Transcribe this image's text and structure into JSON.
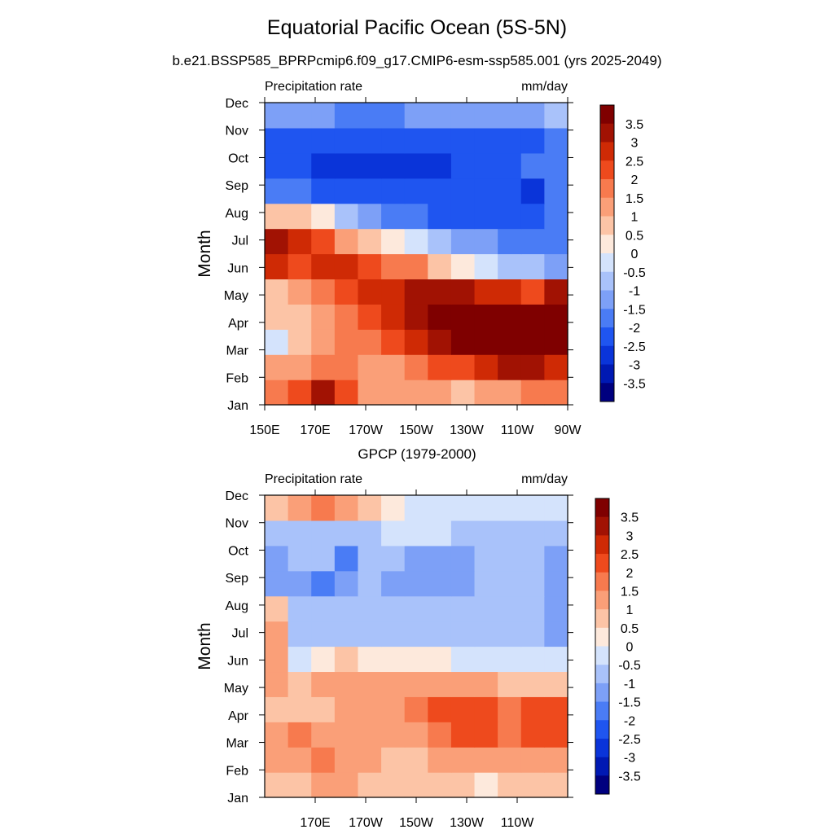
{
  "figure": {
    "title": "Equatorial Pacific Ocean (5S-5N)",
    "subtitle": "b.e21.BSSP585_BPRPcmip6.f09_g17.CMIP6-esm-ssp585.001 (yrs 2025-2049)"
  },
  "chart_data": [
    {
      "type": "heatmap",
      "title": "",
      "left_label": "Precipitation rate",
      "right_label": "mm/day",
      "ylabel": "Month",
      "xlabel": "",
      "y_ticks": [
        "Jan",
        "Feb",
        "Mar",
        "Apr",
        "May",
        "Jun",
        "Jul",
        "Aug",
        "Sep",
        "Oct",
        "Nov",
        "Dec"
      ],
      "x_ticks": [
        "150E",
        "170E",
        "170W",
        "150W",
        "130W",
        "110W",
        "90W"
      ],
      "x_tick_values_deg_east": [
        150,
        170,
        190,
        210,
        230,
        250,
        270
      ],
      "xlim_deg_east": [
        150,
        270
      ],
      "levels": [
        -3.5,
        -3,
        -2.5,
        -2,
        -1.5,
        -1,
        -0.5,
        0,
        0.5,
        1,
        1.5,
        2,
        2.5,
        3,
        3.5
      ],
      "colorbar_labels": [
        "3.5",
        "3",
        "2.5",
        "2",
        "1.5",
        "1",
        "0.5",
        "0",
        "-0.5",
        "-1",
        "-1.5",
        "-2",
        "-2.5",
        "-3",
        "-3.5"
      ],
      "colors": [
        "#00007f",
        "#0019b3",
        "#0a34d9",
        "#1f55f0",
        "#4a7cf5",
        "#7da0f7",
        "#a9c2fa",
        "#d4e3fc",
        "#fde9dc",
        "#fcc4a6",
        "#fa9f78",
        "#f77a4e",
        "#ee4a1d",
        "#cf2a05",
        "#a11203",
        "#7f0000"
      ],
      "anomaly_mm_per_day": {
        "rows_jan_to_dec": [
          [
            1.5,
            2.0,
            3.0,
            2.0,
            1.0,
            1.0,
            1.0,
            1.0,
            0.5,
            1.0,
            1.0,
            1.5,
            1.5
          ],
          [
            1.0,
            1.0,
            1.5,
            1.5,
            1.0,
            1.0,
            1.5,
            2.0,
            2.0,
            2.5,
            3.0,
            3.0,
            2.5
          ],
          [
            -0.5,
            0.5,
            1.0,
            1.5,
            1.5,
            2.0,
            2.5,
            3.0,
            3.5,
            3.5,
            4.0,
            4.0,
            4.0
          ],
          [
            0.5,
            0.5,
            1.0,
            1.5,
            2.0,
            2.5,
            3.0,
            4.0,
            4.0,
            4.0,
            4.0,
            4.0,
            4.0
          ],
          [
            0.5,
            1.0,
            1.5,
            2.0,
            2.5,
            2.5,
            3.0,
            3.0,
            3.0,
            2.5,
            2.5,
            2.0,
            3.0
          ],
          [
            2.5,
            2.0,
            2.5,
            2.5,
            2.0,
            1.5,
            1.5,
            0.5,
            0.0,
            -0.5,
            -1.0,
            -1.0,
            -1.5
          ],
          [
            3.0,
            2.5,
            2.0,
            1.0,
            0.5,
            0.0,
            -0.5,
            -1.0,
            -1.5,
            -1.5,
            -2.0,
            -2.0,
            -2.0
          ],
          [
            0.5,
            0.5,
            0.0,
            -1.0,
            -1.5,
            -2.0,
            -2.0,
            -2.5,
            -2.5,
            -2.5,
            -2.5,
            -2.5,
            -2.0
          ],
          [
            -2.0,
            -2.0,
            -2.5,
            -2.5,
            -2.5,
            -2.5,
            -2.5,
            -2.5,
            -2.5,
            -2.5,
            -2.5,
            -3.0,
            -2.0
          ],
          [
            -2.5,
            -2.5,
            -3.0,
            -3.0,
            -3.0,
            -3.0,
            -3.0,
            -3.0,
            -2.5,
            -2.5,
            -2.5,
            -2.0,
            -2.0
          ],
          [
            -2.5,
            -2.5,
            -2.5,
            -2.5,
            -2.5,
            -2.5,
            -2.5,
            -2.5,
            -2.5,
            -2.5,
            -2.5,
            -2.5,
            -2.0
          ],
          [
            -1.5,
            -1.5,
            -1.5,
            -2.0,
            -2.0,
            -2.0,
            -1.5,
            -1.5,
            -1.5,
            -1.5,
            -1.5,
            -1.5,
            -1.0
          ]
        ]
      }
    },
    {
      "type": "heatmap",
      "title": "GPCP (1979-2000)",
      "left_label": "Precipitation rate",
      "right_label": "mm/day",
      "ylabel": "Month",
      "xlabel": "",
      "y_ticks": [
        "Jan",
        "Feb",
        "Mar",
        "Apr",
        "May",
        "Jun",
        "Jul",
        "Aug",
        "Sep",
        "Oct",
        "Nov",
        "Dec"
      ],
      "x_ticks": [
        "170E",
        "170W",
        "150W",
        "130W",
        "110W"
      ],
      "x_tick_values_deg_east": [
        170,
        190,
        210,
        230,
        250
      ],
      "xlim_deg_east": [
        150,
        270
      ],
      "levels": [
        -3.5,
        -3,
        -2.5,
        -2,
        -1.5,
        -1,
        -0.5,
        0,
        0.5,
        1,
        1.5,
        2,
        2.5,
        3,
        3.5
      ],
      "colorbar_labels": [
        "3.5",
        "3",
        "2.5",
        "2",
        "1.5",
        "1",
        "0.5",
        "0",
        "-0.5",
        "-1",
        "-1.5",
        "-2",
        "-2.5",
        "-3",
        "-3.5"
      ],
      "colors": [
        "#00007f",
        "#0019b3",
        "#0a34d9",
        "#1f55f0",
        "#4a7cf5",
        "#7da0f7",
        "#a9c2fa",
        "#d4e3fc",
        "#fde9dc",
        "#fcc4a6",
        "#fa9f78",
        "#f77a4e",
        "#ee4a1d",
        "#cf2a05",
        "#a11203",
        "#7f0000"
      ],
      "anomaly_mm_per_day": {
        "rows_jan_to_dec": [
          [
            0.5,
            0.5,
            1.0,
            1.0,
            0.5,
            0.5,
            0.5,
            0.5,
            0.5,
            0.0,
            0.5,
            0.5,
            0.5
          ],
          [
            1.0,
            1.0,
            1.5,
            1.0,
            1.0,
            0.5,
            0.5,
            1.0,
            1.0,
            1.0,
            1.0,
            1.0,
            1.0
          ],
          [
            1.0,
            1.5,
            1.0,
            1.0,
            1.0,
            1.0,
            1.0,
            1.5,
            2.0,
            2.0,
            1.5,
            2.0,
            2.0
          ],
          [
            0.5,
            0.5,
            0.5,
            1.0,
            1.0,
            1.0,
            1.5,
            2.0,
            2.0,
            2.0,
            1.5,
            2.0,
            2.0
          ],
          [
            1.0,
            0.5,
            1.0,
            1.0,
            1.0,
            1.0,
            1.0,
            1.0,
            1.0,
            1.0,
            0.5,
            0.5,
            0.5
          ],
          [
            1.0,
            -0.5,
            0.0,
            0.5,
            0.0,
            0.0,
            0.0,
            0.0,
            -0.5,
            -0.5,
            -0.5,
            -0.5,
            -0.5
          ],
          [
            1.0,
            -1.0,
            -1.0,
            -1.0,
            -1.0,
            -1.0,
            -1.0,
            -1.0,
            -1.0,
            -1.0,
            -1.0,
            -1.0,
            -1.5
          ],
          [
            0.5,
            -1.0,
            -1.0,
            -1.0,
            -1.0,
            -1.0,
            -1.0,
            -1.0,
            -1.0,
            -1.0,
            -1.0,
            -1.0,
            -1.5
          ],
          [
            -1.5,
            -1.5,
            -2.0,
            -1.5,
            -1.0,
            -1.5,
            -1.5,
            -1.5,
            -1.5,
            -1.0,
            -1.0,
            -1.0,
            -1.5
          ],
          [
            -1.5,
            -1.0,
            -1.0,
            -2.0,
            -1.0,
            -1.0,
            -1.5,
            -1.5,
            -1.5,
            -1.0,
            -1.0,
            -1.0,
            -1.5
          ],
          [
            -1.0,
            -1.0,
            -1.0,
            -1.0,
            -1.0,
            -0.5,
            -0.5,
            -0.5,
            -1.0,
            -1.0,
            -1.0,
            -1.0,
            -1.0
          ],
          [
            0.5,
            1.0,
            1.5,
            1.0,
            0.5,
            0.0,
            -0.5,
            -0.5,
            -0.5,
            -0.5,
            -0.5,
            -0.5,
            -0.5
          ]
        ]
      }
    }
  ]
}
